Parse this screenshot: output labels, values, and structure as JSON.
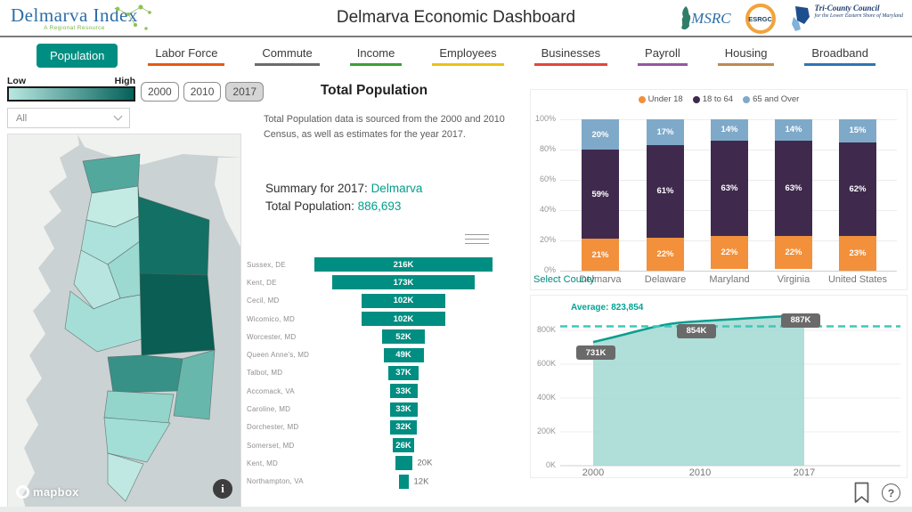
{
  "header": {
    "logo_title": "Delmarva Index",
    "logo_subtitle": "A Regional Resource",
    "title": "Delmarva Economic Dashboard",
    "partners": [
      {
        "name": "msrc",
        "text": "MSRC"
      },
      {
        "name": "esrgc",
        "text": "ESRGC"
      },
      {
        "name": "tri-county-council",
        "text": "Tri-County Council",
        "subtext": "for the Lower Eastern Shore of Maryland"
      }
    ]
  },
  "nav": [
    {
      "label": "Population",
      "active": true,
      "color": "#018E82"
    },
    {
      "label": "Labor Force",
      "active": false,
      "color": "#E55B13"
    },
    {
      "label": "Commute",
      "active": false,
      "color": "#6B6B6B"
    },
    {
      "label": "Income",
      "active": false,
      "color": "#3AA035"
    },
    {
      "label": "Employees",
      "active": false,
      "color": "#EDC211"
    },
    {
      "label": "Businesses",
      "active": false,
      "color": "#E2463C"
    },
    {
      "label": "Payroll",
      "active": false,
      "color": "#9457A3"
    },
    {
      "label": "Housing",
      "active": false,
      "color": "#BE8A52"
    },
    {
      "label": "Broadband",
      "active": false,
      "color": "#2E75B6"
    }
  ],
  "filters": {
    "scale_low": "Low",
    "scale_high": "High",
    "scale_low_color": "#B9E7E1",
    "scale_high_color": "#04615A",
    "years": [
      {
        "label": "2000",
        "selected": false
      },
      {
        "label": "2010",
        "selected": false
      },
      {
        "label": "2017",
        "selected": true
      }
    ],
    "dropdown_value": "All"
  },
  "map": {
    "attribution": "mapbox",
    "info_glyph": "i"
  },
  "summary": {
    "title": "Total Population",
    "description": "Total Population data is sourced from the 2000 and 2010 Census, as well as estimates for the year 2017.",
    "summary_label": "Summary for 2017:",
    "summary_value": "Delmarva",
    "total_label": "Total Population:",
    "total_value": "886,693"
  },
  "chart_data": [
    {
      "id": "county-population-funnel",
      "type": "bar",
      "subtype": "centered-funnel",
      "orientation": "horizontal",
      "title": "",
      "categories": [
        "Sussex, DE",
        "Kent, DE",
        "Cecil, MD",
        "Wicomico, MD",
        "Worcester, MD",
        "Queen Anne's, MD",
        "Talbot, MD",
        "Accomack, VA",
        "Caroline, MD",
        "Dorchester, MD",
        "Somerset, MD",
        "Kent, MD",
        "Northampton, VA"
      ],
      "values": [
        216000,
        173000,
        102000,
        102000,
        52000,
        49000,
        37000,
        33000,
        33000,
        32000,
        26000,
        20000,
        12000
      ],
      "labels": [
        "216K",
        "173K",
        "102K",
        "102K",
        "52K",
        "49K",
        "37K",
        "33K",
        "33K",
        "32K",
        "26K",
        "20K",
        "12K"
      ],
      "bar_color": "#018E82"
    },
    {
      "id": "age-distribution-stacked",
      "type": "bar",
      "subtype": "stacked-100",
      "categories": [
        "Delmarva",
        "Delaware",
        "Maryland",
        "Virginia",
        "United States"
      ],
      "series": [
        {
          "name": "Under 18",
          "color": "#F2903B",
          "values": [
            21,
            22,
            22,
            22,
            23
          ]
        },
        {
          "name": "18 to 64",
          "color": "#3F2A4E",
          "values": [
            59,
            61,
            63,
            63,
            62
          ]
        },
        {
          "name": "65 and Over",
          "color": "#7FA9C9",
          "values": [
            20,
            17,
            14,
            14,
            15
          ]
        }
      ],
      "y_ticks": [
        "100%",
        "80%",
        "60%",
        "40%",
        "20%",
        "0%"
      ],
      "ylim": [
        0,
        100
      ],
      "x_axis_label": "Select County",
      "legend_position": "top",
      "grid": true
    },
    {
      "id": "population-trend-area",
      "type": "area",
      "x": [
        "2000",
        "2010",
        "2017"
      ],
      "values": [
        731000,
        854000,
        887000
      ],
      "labels": [
        "731K",
        "854K",
        "887K"
      ],
      "average_label": "Average: 823,854",
      "average_value": 823854,
      "y_ticks": [
        "800K",
        "600K",
        "400K",
        "200K",
        "0K"
      ],
      "ylim": [
        0,
        900000
      ],
      "line_color": "#0A9E8F",
      "fill_color": "#A5DAD4",
      "average_color": "#3BC8BA",
      "label_bg": "#6A6A6A",
      "grid": true
    }
  ],
  "footer": {
    "help_glyph": "?"
  }
}
